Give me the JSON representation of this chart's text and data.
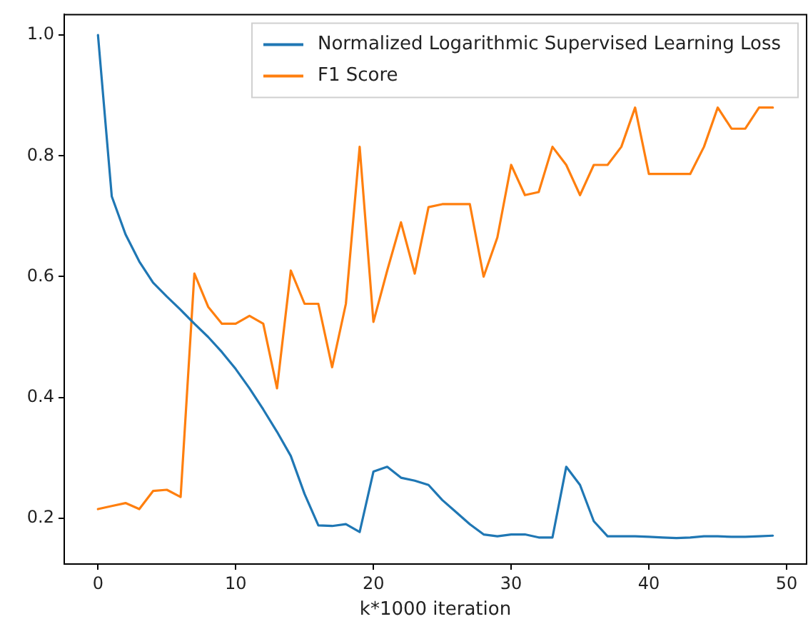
{
  "chart_data": {
    "type": "line",
    "xlabel": "k*1000 iteration",
    "x": [
      0,
      1,
      2,
      3,
      4,
      5,
      6,
      7,
      8,
      9,
      10,
      11,
      12,
      13,
      14,
      15,
      16,
      17,
      18,
      19,
      20,
      21,
      22,
      23,
      24,
      25,
      26,
      27,
      28,
      29,
      30,
      31,
      32,
      33,
      34,
      35,
      36,
      37,
      38,
      39,
      40,
      41,
      42,
      43,
      44,
      45,
      46,
      47,
      48,
      49
    ],
    "series": [
      {
        "name": "Normalized Logarithmic Supervised Learning Loss",
        "color": "#1f77b4",
        "values": [
          1.0,
          0.733,
          0.67,
          0.625,
          0.59,
          0.567,
          0.545,
          0.522,
          0.5,
          0.475,
          0.447,
          0.415,
          0.38,
          0.343,
          0.303,
          0.24,
          0.188,
          0.187,
          0.19,
          0.177,
          0.277,
          0.285,
          0.267,
          0.262,
          0.255,
          0.23,
          0.21,
          0.19,
          0.173,
          0.17,
          0.173,
          0.173,
          0.168,
          0.168,
          0.285,
          0.255,
          0.195,
          0.17,
          0.17,
          0.17,
          0.169,
          0.168,
          0.167,
          0.168,
          0.17,
          0.17,
          0.169,
          0.169,
          0.17,
          0.171
        ]
      },
      {
        "name": "F1 Score",
        "color": "#ff7f0e",
        "values": [
          0.215,
          0.22,
          0.225,
          0.215,
          0.245,
          0.247,
          0.235,
          0.605,
          0.55,
          0.522,
          0.522,
          0.535,
          0.522,
          0.415,
          0.61,
          0.555,
          0.555,
          0.45,
          0.555,
          0.815,
          0.525,
          0.61,
          0.69,
          0.605,
          0.715,
          0.72,
          0.72,
          0.72,
          0.6,
          0.665,
          0.785,
          0.735,
          0.74,
          0.815,
          0.785,
          0.735,
          0.785,
          0.785,
          0.815,
          0.88,
          0.77,
          0.77,
          0.77,
          0.77,
          0.815,
          0.88,
          0.845,
          0.845,
          0.88,
          0.88
        ]
      }
    ],
    "xlim": [
      -2.45,
      51.45
    ],
    "xticks": [
      0,
      10,
      20,
      30,
      40,
      50
    ],
    "ylim": [
      0.124,
      1.034
    ],
    "yticks": [
      {
        "value": 0.2,
        "label": "0.2"
      },
      {
        "value": 0.4,
        "label": "0.4"
      },
      {
        "value": 0.6,
        "label": "0.6"
      },
      {
        "value": 0.8,
        "label": "0.8"
      },
      {
        "value": 1.0,
        "label": "1.0"
      }
    ],
    "legend": "top right",
    "grid": false,
    "marker": "none",
    "line_style": "solid"
  }
}
